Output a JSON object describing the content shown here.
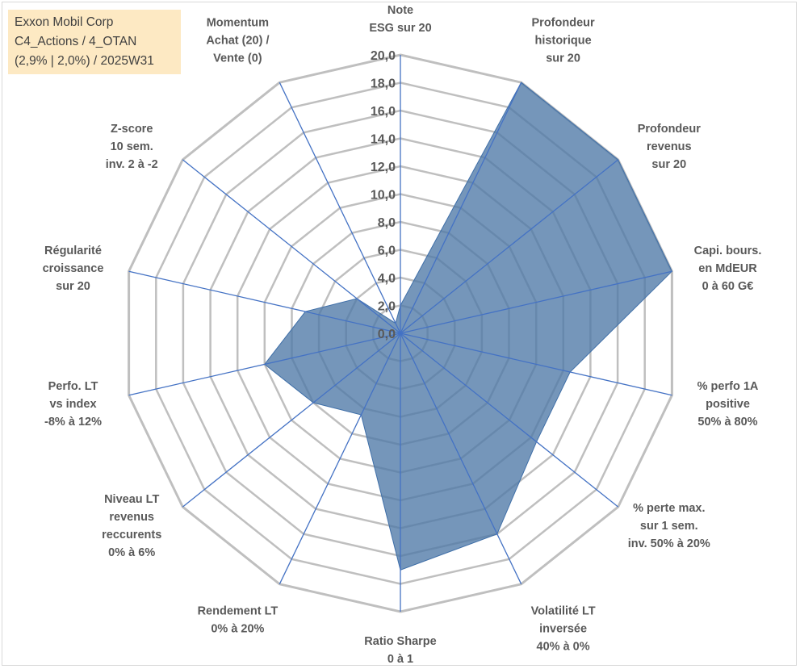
{
  "info": {
    "line1": "Exxon Mobil Corp",
    "line2": "C4_Actions / 4_OTAN",
    "line3": "(2,9% | 2,0%) / 2025W31"
  },
  "colors": {
    "fill": "#4e79a7",
    "stroke": "#3f6fa8",
    "axis": "#4472c4",
    "grid": "#bfbfbf",
    "text": "#595959",
    "info_bg": "#fde9c3"
  },
  "chart_data": {
    "type": "radar",
    "rmin": 0,
    "rmax": 20,
    "ticks": [
      "0,0",
      "2,0",
      "4,0",
      "6,0",
      "8,0",
      "10,0",
      "12,0",
      "14,0",
      "16,0",
      "18,0",
      "20,0"
    ],
    "grid": true,
    "axes": [
      [
        "Note",
        "ESG sur 20"
      ],
      [
        "Profondeur",
        "historique",
        "sur 20"
      ],
      [
        "Profondeur",
        "revenus",
        "sur 20"
      ],
      [
        "Capi. bours.",
        "en MdEUR",
        "0 à 60 G€"
      ],
      [
        "% perfo 1A",
        "positive",
        "50% à 80%"
      ],
      [
        "% perte max.",
        "sur 1 sem.",
        "inv. 50% à 20%"
      ],
      [
        "Volatilité LT",
        "inversée",
        "40% à 0%"
      ],
      [
        "Ratio Sharpe",
        "0 à 1"
      ],
      [
        "Rendement LT",
        "0% à 20%"
      ],
      [
        "Niveau LT",
        "revenus",
        "reccurents",
        "0% à 6%"
      ],
      [
        "Perfo. LT",
        "vs index",
        "-8% à 12%"
      ],
      [
        "Régularité",
        "croissance",
        "sur 20"
      ],
      [
        "Z-score",
        "10 sem.",
        "inv. 2 à -2"
      ],
      [
        "Momentum",
        "Achat (20) /",
        "Vente (0)"
      ]
    ],
    "series": [
      {
        "values": [
          2.0,
          20.0,
          20.0,
          20.0,
          12.5,
          12.5,
          16.0,
          17.0,
          6.5,
          8.0,
          10.0,
          7.0,
          4.0,
          0.8
        ]
      }
    ]
  }
}
